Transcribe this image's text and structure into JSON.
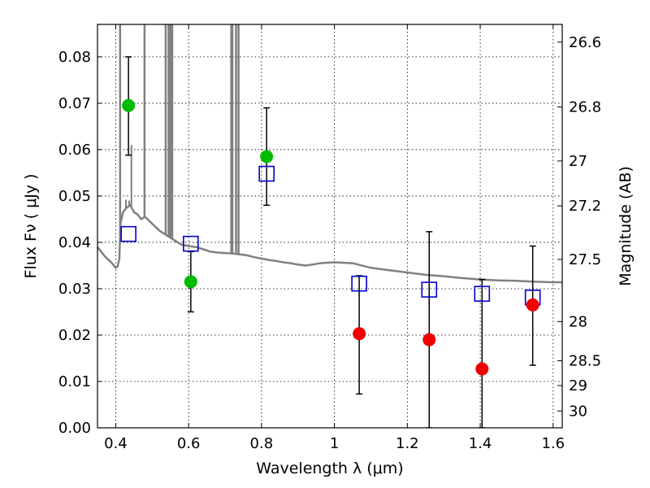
{
  "chart_data": {
    "type": "scatter",
    "title": "",
    "xlabel": "Wavelength  λ (μm)",
    "ylabel": "Flux  Fν  ( μJy )",
    "y2label": "Magnitude (AB)",
    "xlim": [
      0.35,
      1.625
    ],
    "ylim": [
      0.0,
      0.087
    ],
    "grid": true,
    "x_ticks": [
      0.4,
      0.6,
      0.8,
      1.0,
      1.2,
      1.4,
      1.6
    ],
    "x_tick_labels": [
      "0.4",
      "0.6",
      "0.8",
      "1",
      "1.2",
      "1.4",
      "1.6"
    ],
    "y_ticks": [
      0.0,
      0.01,
      0.02,
      0.03,
      0.04,
      0.05,
      0.06,
      0.07,
      0.08
    ],
    "y_tick_labels": [
      "0.00",
      "0.01",
      "0.02",
      "0.03",
      "0.04",
      "0.05",
      "0.06",
      "0.07",
      "0.08"
    ],
    "mag_ticks": [
      26.6,
      26.8,
      27.0,
      27.2,
      27.5,
      28.0,
      28.5,
      29.0,
      30.0
    ],
    "mag_tick_labels": [
      "26.6",
      "26.8",
      "27",
      "27.2",
      "27.5",
      "28",
      "28.5",
      "29",
      "30"
    ],
    "colors": {
      "sed": "#808080",
      "model_photometry": "#0000cc",
      "detection": "#00bb00",
      "nondetection": "#ee0000",
      "errorbar": "#000000"
    },
    "series": [
      {
        "style": "line",
        "color": "#808080",
        "x": [
          0.35,
          0.37,
          0.39,
          0.4,
          0.405,
          0.41,
          0.413,
          0.42,
          0.43,
          0.44,
          0.45,
          0.46,
          0.47,
          0.48,
          0.49,
          0.5,
          0.52,
          0.54,
          0.56,
          0.58,
          0.6,
          0.62,
          0.64,
          0.66,
          0.68,
          0.7,
          0.72,
          0.74,
          0.76,
          0.78,
          0.8,
          0.82,
          0.84,
          0.86,
          0.88,
          0.9,
          0.92,
          0.94,
          0.96,
          0.98,
          1.0,
          1.05,
          1.1,
          1.15,
          1.2,
          1.25,
          1.3,
          1.35,
          1.4,
          1.45,
          1.5,
          1.55,
          1.6,
          1.625
        ],
        "y": [
          0.039,
          0.037,
          0.0355,
          0.0345,
          0.0348,
          0.0365,
          0.044,
          0.0465,
          0.0475,
          0.048,
          0.0465,
          0.046,
          0.045,
          0.0455,
          0.0448,
          0.044,
          0.0425,
          0.0415,
          0.0405,
          0.0395,
          0.0392,
          0.039,
          0.0385,
          0.038,
          0.0378,
          0.0377,
          0.0376,
          0.0374,
          0.0372,
          0.0368,
          0.0365,
          0.0362,
          0.036,
          0.0357,
          0.0355,
          0.0352,
          0.035,
          0.0352,
          0.0355,
          0.0356,
          0.0357,
          0.0355,
          0.0345,
          0.034,
          0.0335,
          0.033,
          0.0327,
          0.0323,
          0.032,
          0.0318,
          0.0317,
          0.0315,
          0.0314,
          0.0314
        ]
      },
      {
        "style": "open-square",
        "color": "#0000cc",
        "x": [
          0.435,
          0.606,
          0.814,
          1.068,
          1.26,
          1.405,
          1.544
        ],
        "y": [
          0.0418,
          0.0397,
          0.0548,
          0.0311,
          0.0298,
          0.0289,
          0.0281
        ]
      },
      {
        "style": "filled-circle",
        "color": "#00bb00",
        "x": [
          0.435,
          0.606,
          0.814
        ],
        "y": [
          0.0695,
          0.0315,
          0.0585
        ],
        "err_low": [
          0.0588,
          0.025,
          0.048
        ],
        "err_high": [
          0.08,
          0.038,
          0.069
        ]
      },
      {
        "style": "filled-circle",
        "color": "#ee0000",
        "x": [
          1.068,
          1.26,
          1.405,
          1.544
        ],
        "y": [
          0.0203,
          0.019,
          0.0127,
          0.0265
        ],
        "err_low": [
          0.0073,
          0.0,
          0.0,
          0.0135
        ],
        "err_high": [
          0.0328,
          0.0423,
          0.032,
          0.0392
        ]
      }
    ]
  }
}
